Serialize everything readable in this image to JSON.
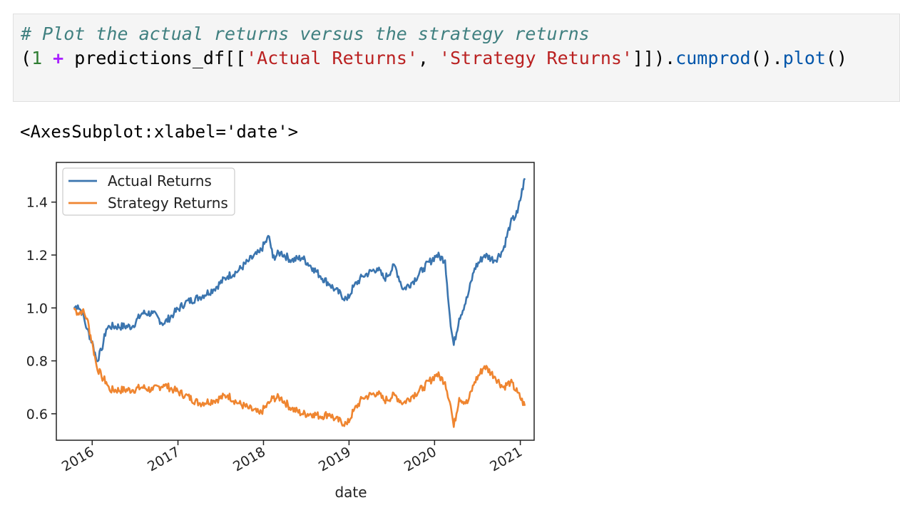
{
  "code_cell": {
    "line1_comment": "# Plot the actual returns versus the strategy returns",
    "line2": {
      "open_paren": "(",
      "one": "1",
      "plus": " + ",
      "var": "predictions_df[[",
      "str1": "'Actual Returns'",
      "comma": ", ",
      "str2": "'Strategy Returns'",
      "close": "]]).",
      "cumprod": "cumprod",
      "parens1": "().",
      "plot": "plot",
      "parens2": "()"
    }
  },
  "output": {
    "repr_text": "<AxesSubplot:xlabel='date'>"
  },
  "chart_data": {
    "type": "line",
    "xlabel": "date",
    "ylabel": "",
    "xlim": [
      "2015-08-01",
      "2021-03-01"
    ],
    "ylim": [
      0.5,
      1.55
    ],
    "x_ticks": [
      "2016",
      "2017",
      "2018",
      "2019",
      "2020",
      "2021"
    ],
    "y_ticks": [
      "0.6",
      "0.8",
      "1.0",
      "1.2",
      "1.4"
    ],
    "legend_placement": "top-left",
    "series": [
      {
        "name": "Actual Returns",
        "color": "#3b75af",
        "points": [
          [
            "2015-10-15",
            1.0
          ],
          [
            "2015-11-01",
            1.01
          ],
          [
            "2015-11-20",
            0.98
          ],
          [
            "2015-12-10",
            0.92
          ],
          [
            "2016-01-05",
            0.86
          ],
          [
            "2016-01-20",
            0.8
          ],
          [
            "2016-02-10",
            0.84
          ],
          [
            "2016-03-01",
            0.92
          ],
          [
            "2016-03-15",
            0.93
          ],
          [
            "2016-06-20",
            0.93
          ],
          [
            "2016-08-01",
            0.98
          ],
          [
            "2016-09-15",
            0.98
          ],
          [
            "2016-11-01",
            0.94
          ],
          [
            "2016-12-15",
            0.98
          ],
          [
            "2017-02-01",
            1.02
          ],
          [
            "2017-04-01",
            1.04
          ],
          [
            "2017-06-01",
            1.07
          ],
          [
            "2017-08-01",
            1.12
          ],
          [
            "2017-09-15",
            1.14
          ],
          [
            "2017-11-01",
            1.18
          ],
          [
            "2017-12-15",
            1.21
          ],
          [
            "2018-01-25",
            1.27
          ],
          [
            "2018-02-10",
            1.19
          ],
          [
            "2018-03-15",
            1.21
          ],
          [
            "2018-05-01",
            1.18
          ],
          [
            "2018-06-15",
            1.19
          ],
          [
            "2018-08-01",
            1.15
          ],
          [
            "2018-09-01",
            1.12
          ],
          [
            "2018-10-10",
            1.09
          ],
          [
            "2018-11-01",
            1.07
          ],
          [
            "2018-12-24",
            1.03
          ],
          [
            "2019-01-20",
            1.08
          ],
          [
            "2019-03-01",
            1.12
          ],
          [
            "2019-05-01",
            1.15
          ],
          [
            "2019-06-01",
            1.11
          ],
          [
            "2019-07-15",
            1.16
          ],
          [
            "2019-08-20",
            1.07
          ],
          [
            "2019-10-01",
            1.1
          ],
          [
            "2019-11-15",
            1.15
          ],
          [
            "2020-01-10",
            1.2
          ],
          [
            "2020-02-15",
            1.18
          ],
          [
            "2020-03-10",
            0.93
          ],
          [
            "2020-03-23",
            0.86
          ],
          [
            "2020-04-15",
            0.96
          ],
          [
            "2020-05-20",
            1.04
          ],
          [
            "2020-06-20",
            1.15
          ],
          [
            "2020-08-01",
            1.2
          ],
          [
            "2020-09-15",
            1.18
          ],
          [
            "2020-10-20",
            1.22
          ],
          [
            "2020-11-20",
            1.32
          ],
          [
            "2020-12-20",
            1.36
          ],
          [
            "2021-01-20",
            1.49
          ]
        ]
      },
      {
        "name": "Strategy Returns",
        "color": "#ef8530",
        "points": [
          [
            "2015-10-15",
            1.0
          ],
          [
            "2015-11-01",
            0.98
          ],
          [
            "2015-11-20",
            0.99
          ],
          [
            "2015-12-10",
            0.96
          ],
          [
            "2016-01-05",
            0.85
          ],
          [
            "2016-01-20",
            0.78
          ],
          [
            "2016-02-10",
            0.74
          ],
          [
            "2016-03-01",
            0.72
          ],
          [
            "2016-03-15",
            0.69
          ],
          [
            "2016-06-20",
            0.69
          ],
          [
            "2016-08-01",
            0.7
          ],
          [
            "2016-09-15",
            0.69
          ],
          [
            "2016-11-01",
            0.71
          ],
          [
            "2016-12-15",
            0.69
          ],
          [
            "2017-02-01",
            0.67
          ],
          [
            "2017-04-01",
            0.64
          ],
          [
            "2017-06-01",
            0.65
          ],
          [
            "2017-08-01",
            0.67
          ],
          [
            "2017-09-15",
            0.64
          ],
          [
            "2017-11-01",
            0.62
          ],
          [
            "2017-12-15",
            0.6
          ],
          [
            "2018-01-25",
            0.64
          ],
          [
            "2018-02-10",
            0.66
          ],
          [
            "2018-03-15",
            0.66
          ],
          [
            "2018-05-01",
            0.62
          ],
          [
            "2018-06-15",
            0.6
          ],
          [
            "2018-08-01",
            0.6
          ],
          [
            "2018-09-01",
            0.59
          ],
          [
            "2018-10-10",
            0.6
          ],
          [
            "2018-11-01",
            0.58
          ],
          [
            "2018-12-24",
            0.56
          ],
          [
            "2019-01-20",
            0.61
          ],
          [
            "2019-03-01",
            0.66
          ],
          [
            "2019-05-01",
            0.68
          ],
          [
            "2019-06-01",
            0.65
          ],
          [
            "2019-07-15",
            0.67
          ],
          [
            "2019-08-20",
            0.64
          ],
          [
            "2019-10-01",
            0.67
          ],
          [
            "2019-11-15",
            0.7
          ],
          [
            "2020-01-10",
            0.75
          ],
          [
            "2020-02-15",
            0.72
          ],
          [
            "2020-03-10",
            0.63
          ],
          [
            "2020-03-23",
            0.55
          ],
          [
            "2020-04-15",
            0.66
          ],
          [
            "2020-05-20",
            0.64
          ],
          [
            "2020-06-20",
            0.72
          ],
          [
            "2020-08-01",
            0.78
          ],
          [
            "2020-09-15",
            0.74
          ],
          [
            "2020-10-20",
            0.7
          ],
          [
            "2020-11-20",
            0.72
          ],
          [
            "2020-12-20",
            0.68
          ],
          [
            "2021-01-20",
            0.63
          ]
        ]
      }
    ]
  }
}
